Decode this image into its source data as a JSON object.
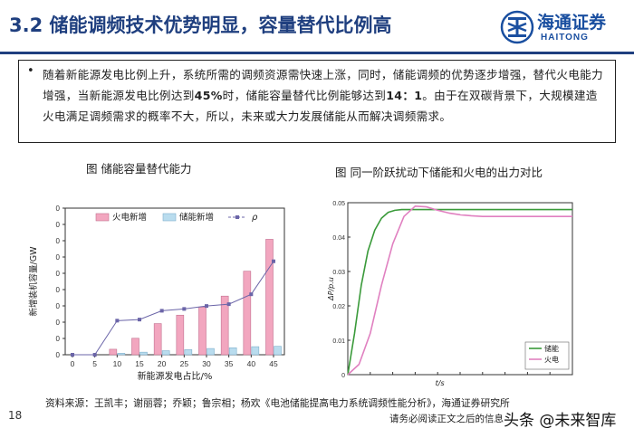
{
  "header": {
    "title": "3.2 储能调频技术优势明显，容量替代比例高",
    "logo_cn": "海通证券",
    "logo_en": "HAITONG",
    "accent_color": "#1f3f7f"
  },
  "summary": {
    "part1": "随着新能源发电比例上升，系统所需的调频资源需快速上涨，同时，储能调频的优势逐步增强，替代火电能力增强，当新能源发电比例达到",
    "pct": "45%",
    "part2": "时，储能容量替代比例能够达到",
    "ratio": "14：1",
    "part3": "。由于在双碳背景下，大规模建造火电满足调频需求的概率不大，所以，未来或大力发展储能从而解决调频需求。"
  },
  "figure1": {
    "caption": "图 储能容量替代能力"
  },
  "figure2": {
    "caption": "图 同一阶跃扰动下储能和火电的出力对比"
  },
  "footer": {
    "page": "18",
    "source": "资料来源：王凯丰；谢丽蓉；乔颖；鲁宗相；杨欢《电池储能提高电力系统调频性能分析》，海通证券研究所",
    "disclaimer": "请务必阅读正文之后的信息",
    "watermark": "头条 @未来智库"
  },
  "chart_data": [
    {
      "type": "bar",
      "ylabel": "新增装机容量/GW",
      "xlabel": "新能源发电占比/%",
      "categories": [
        "0",
        "5",
        "10",
        "15",
        "20",
        "25",
        "30",
        "35",
        "40",
        "45"
      ],
      "series": [
        {
          "name": "火电新增",
          "values": [
            0,
            0,
            0.15,
            0.45,
            0.85,
            1.08,
            1.3,
            1.6,
            2.28,
            3.15
          ],
          "color": "#f2a6bf"
        },
        {
          "name": "储能新增",
          "values": [
            0,
            0,
            0.04,
            0.07,
            0.11,
            0.14,
            0.17,
            0.19,
            0.22,
            0.23
          ],
          "color": "#b9dcee"
        },
        {
          "name": "ρ",
          "type": "line",
          "values": [
            0.0,
            0.0,
            0.93,
            0.96,
            1.2,
            1.25,
            1.33,
            1.38,
            1.65,
            2.55
          ],
          "color": "#6b65a8"
        }
      ],
      "ylim": [
        0,
        4
      ],
      "yticks": [
        "0",
        "0",
        "0",
        "0",
        "0",
        "0",
        "0",
        "0",
        "0",
        "0"
      ],
      "legend_position": "top"
    },
    {
      "type": "line",
      "ylabel": "ΔP/p.u",
      "xlabel": "t/s",
      "yticks": [
        "0",
        "0.01",
        "0.02",
        "0.03",
        "0.04",
        "0.05"
      ],
      "ylim": [
        0,
        0.05
      ],
      "xlim": [
        0,
        10
      ],
      "series": [
        {
          "name": "储能",
          "color": "#3a9a3a",
          "x": [
            0,
            0.3,
            0.6,
            0.9,
            1.2,
            1.5,
            1.8,
            2.1,
            2.4,
            2.7,
            3,
            4,
            5,
            6,
            7,
            8,
            9,
            10
          ],
          "values": [
            0,
            0.012,
            0.026,
            0.036,
            0.042,
            0.0455,
            0.0472,
            0.0478,
            0.048,
            0.048,
            0.048,
            0.048,
            0.048,
            0.048,
            0.048,
            0.048,
            0.048,
            0.048
          ]
        },
        {
          "name": "火电",
          "color": "#e080c0",
          "x": [
            0,
            0.5,
            1,
            1.5,
            2,
            2.5,
            3,
            3.5,
            4,
            4.5,
            5,
            5.5,
            6,
            7,
            8,
            9,
            10
          ],
          "values": [
            0,
            0.003,
            0.012,
            0.026,
            0.038,
            0.046,
            0.049,
            0.0488,
            0.0478,
            0.047,
            0.0465,
            0.0462,
            0.046,
            0.046,
            0.046,
            0.046,
            0.046
          ]
        }
      ],
      "legend_position": "bottom-right"
    }
  ]
}
